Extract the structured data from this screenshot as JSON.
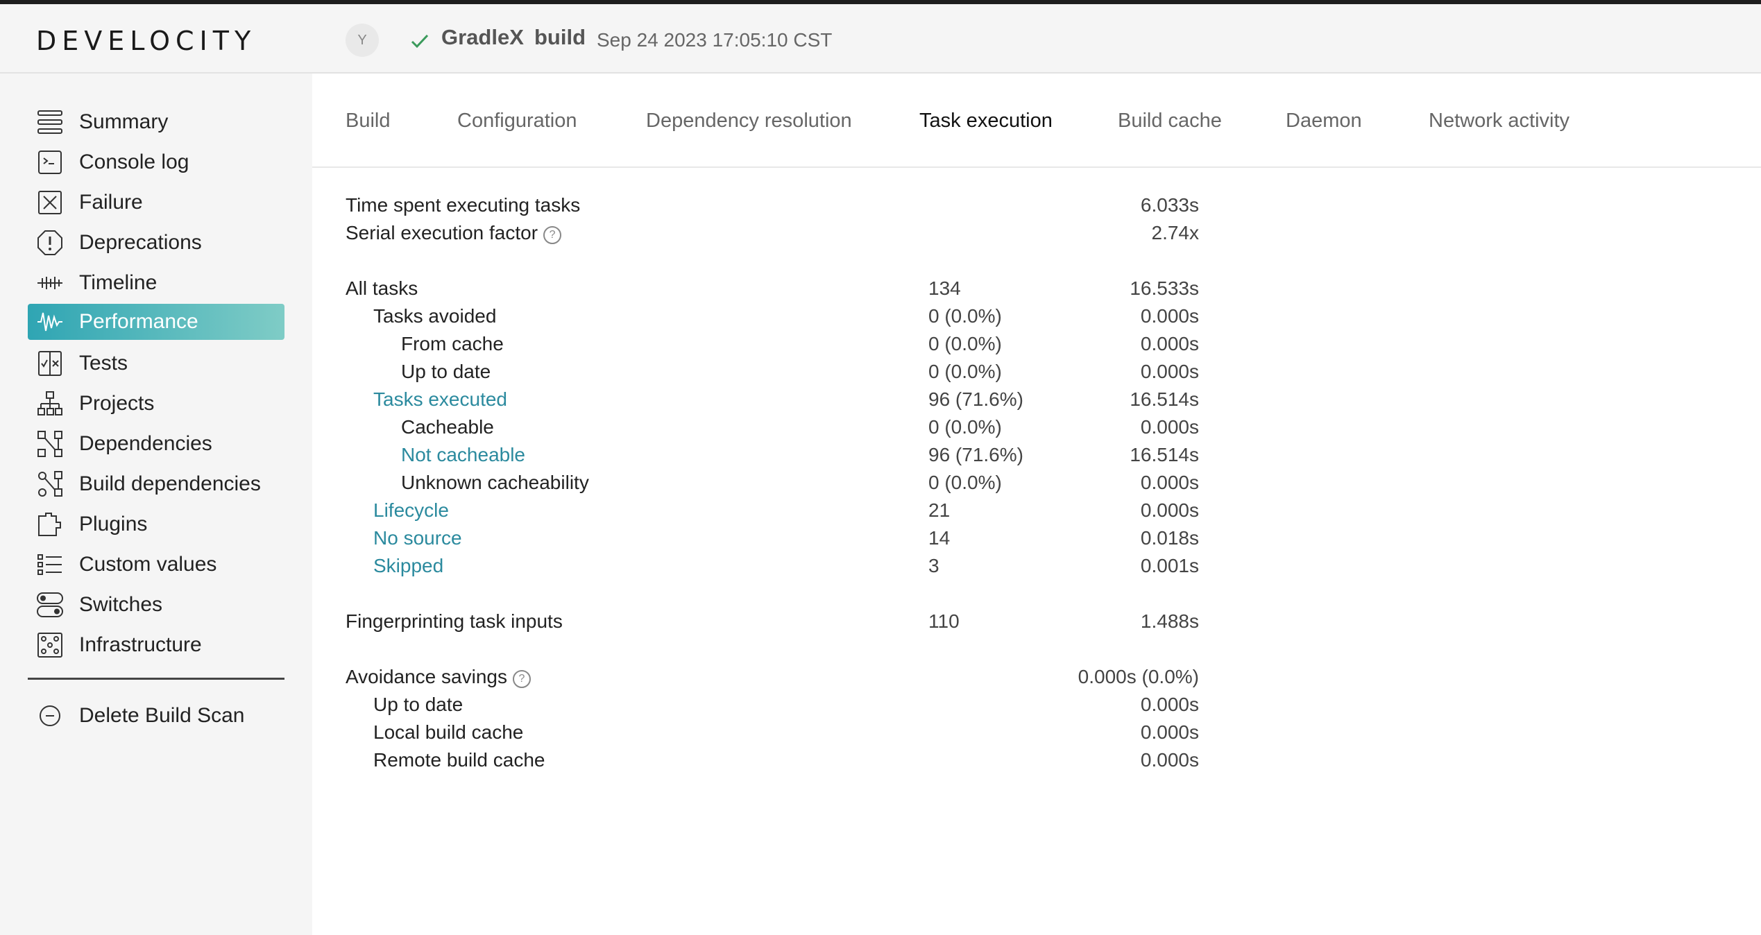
{
  "header": {
    "logo": "DEVELOCITY",
    "avatar_initial": "Y",
    "project": "GradleX",
    "task": "build",
    "timestamp": "Sep 24 2023 17:05:10 CST",
    "status_icon": "check-icon"
  },
  "sidebar": {
    "items": [
      {
        "label": "Summary",
        "icon": "summary-icon"
      },
      {
        "label": "Console log",
        "icon": "console-icon"
      },
      {
        "label": "Failure",
        "icon": "failure-icon"
      },
      {
        "label": "Deprecations",
        "icon": "deprecations-icon"
      },
      {
        "label": "Timeline",
        "icon": "timeline-icon"
      },
      {
        "label": "Performance",
        "icon": "performance-icon"
      },
      {
        "label": "Tests",
        "icon": "tests-icon"
      },
      {
        "label": "Projects",
        "icon": "projects-icon"
      },
      {
        "label": "Dependencies",
        "icon": "dependencies-icon"
      },
      {
        "label": "Build dependencies",
        "icon": "build-dependencies-icon"
      },
      {
        "label": "Plugins",
        "icon": "plugins-icon"
      },
      {
        "label": "Custom values",
        "icon": "custom-values-icon"
      },
      {
        "label": "Switches",
        "icon": "switches-icon"
      },
      {
        "label": "Infrastructure",
        "icon": "infrastructure-icon"
      }
    ],
    "active": "Performance",
    "delete_label": "Delete Build Scan"
  },
  "tabs": [
    "Build",
    "Configuration",
    "Dependency resolution",
    "Task execution",
    "Build cache",
    "Daemon",
    "Network activity"
  ],
  "active_tab": "Task execution",
  "stats": {
    "time_spent_label": "Time spent executing tasks",
    "time_spent": "6.033s",
    "serial_label": "Serial execution factor",
    "serial": "2.74x",
    "rows": [
      {
        "label": "All tasks",
        "count": "134",
        "time": "16.533s",
        "link": false
      },
      {
        "label": "Tasks avoided",
        "count": "0 (0.0%)",
        "time": "0.000s",
        "link": false
      },
      {
        "label": "From cache",
        "count": "0 (0.0%)",
        "time": "0.000s",
        "link": false
      },
      {
        "label": "Up to date",
        "count": "0 (0.0%)",
        "time": "0.000s",
        "link": false
      },
      {
        "label": "Tasks executed",
        "count": "96 (71.6%)",
        "time": "16.514s",
        "link": true
      },
      {
        "label": "Cacheable",
        "count": "0 (0.0%)",
        "time": "0.000s",
        "link": false
      },
      {
        "label": "Not cacheable",
        "count": "96 (71.6%)",
        "time": "16.514s",
        "link": true
      },
      {
        "label": "Unknown cacheability",
        "count": "0 (0.0%)",
        "time": "0.000s",
        "link": false
      },
      {
        "label": "Lifecycle",
        "count": "21",
        "time": "0.000s",
        "link": true
      },
      {
        "label": "No source",
        "count": "14",
        "time": "0.018s",
        "link": true
      },
      {
        "label": "Skipped",
        "count": "3",
        "time": "0.001s",
        "link": true
      }
    ],
    "fingerprint_label": "Fingerprinting task inputs",
    "fingerprint_count": "110",
    "fingerprint_time": "1.488s",
    "avoidance_label": "Avoidance savings",
    "avoidance_total": "0.000s (0.0%)",
    "avoidance_rows": [
      {
        "label": "Up to date",
        "time": "0.000s"
      },
      {
        "label": "Local build cache",
        "time": "0.000s"
      },
      {
        "label": "Remote build cache",
        "time": "0.000s"
      }
    ]
  }
}
